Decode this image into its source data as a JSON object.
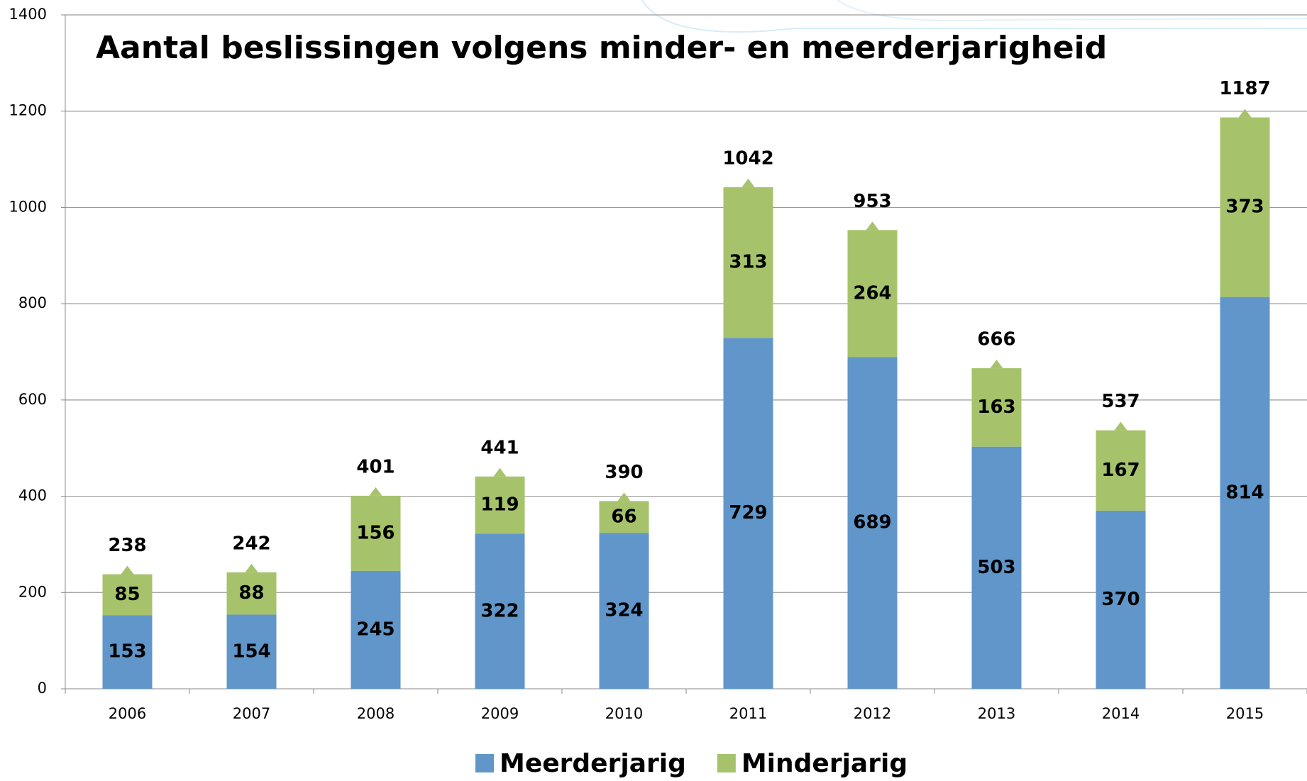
{
  "chart_data": {
    "type": "stacked_bar",
    "title": "Aantal beslissingen volgens minder- en meerderjarigheid",
    "categories": [
      "2006",
      "2007",
      "2008",
      "2009",
      "2010",
      "2011",
      "2012",
      "2013",
      "2014",
      "2015"
    ],
    "series": [
      {
        "name": "Meerderjarig",
        "color": "#6096c9",
        "values": [
          153,
          154,
          245,
          322,
          324,
          729,
          689,
          503,
          370,
          814
        ]
      },
      {
        "name": "Minderjarig",
        "color": "#a6c36b",
        "values": [
          85,
          88,
          156,
          119,
          66,
          313,
          264,
          163,
          167,
          373
        ]
      }
    ],
    "totals": [
      238,
      242,
      401,
      441,
      390,
      1042,
      953,
      666,
      537,
      1187
    ],
    "ylim": [
      0,
      1400
    ],
    "yticks": [
      0,
      200,
      400,
      600,
      800,
      1000,
      1200,
      1400
    ],
    "grid": true,
    "legend": "bottom"
  }
}
